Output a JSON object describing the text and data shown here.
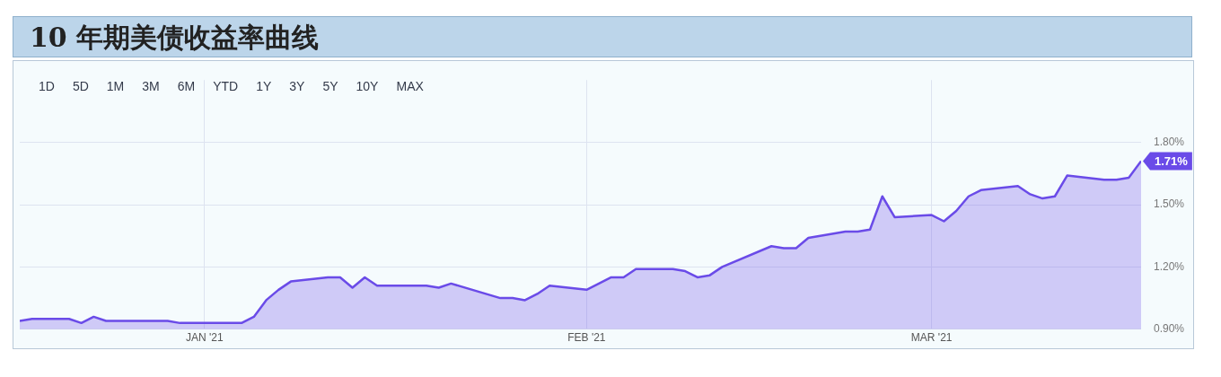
{
  "chart_data": {
    "type": "area",
    "title": "10 年期美债收益率曲线",
    "annotations": [
      "1D",
      "5D",
      "1M",
      "3M",
      "6M",
      "YTD",
      "1Y",
      "3Y",
      "5Y",
      "10Y",
      "MAX"
    ],
    "x": [
      "2020-12-17",
      "2020-12-18",
      "2020-12-21",
      "2020-12-22",
      "2020-12-23",
      "2020-12-24",
      "2020-12-29",
      "2020-12-30",
      "2021-01-04",
      "2021-01-05",
      "2021-01-06",
      "2021-01-07",
      "2021-01-08",
      "2021-01-11",
      "2021-01-12",
      "2021-01-13",
      "2021-01-14",
      "2021-01-15",
      "2021-01-19",
      "2021-01-20",
      "2021-01-21",
      "2021-01-25",
      "2021-01-26",
      "2021-01-27",
      "2021-01-28",
      "2021-01-29",
      "2021-02-01",
      "2021-02-03",
      "2021-02-04",
      "2021-02-05",
      "2021-02-08",
      "2021-02-09",
      "2021-02-10",
      "2021-02-11",
      "2021-02-12",
      "2021-02-16",
      "2021-02-17",
      "2021-02-18",
      "2021-02-19",
      "2021-02-22",
      "2021-02-23",
      "2021-02-24",
      "2021-02-25",
      "2021-02-26",
      "2021-03-01",
      "2021-03-02",
      "2021-03-03",
      "2021-03-04",
      "2021-03-05",
      "2021-03-08",
      "2021-03-09",
      "2021-03-10",
      "2021-03-11",
      "2021-03-12",
      "2021-03-15",
      "2021-03-16",
      "2021-03-17",
      "2021-03-18"
    ],
    "series": [
      {
        "color": "#6a4be8",
        "values": [
          0.94,
          0.95,
          0.95,
          0.93,
          0.96,
          0.94,
          0.94,
          0.93,
          0.93,
          0.96,
          1.04,
          1.09,
          1.13,
          1.15,
          1.15,
          1.1,
          1.15,
          1.11,
          1.11,
          1.1,
          1.12,
          1.05,
          1.05,
          1.04,
          1.07,
          1.11,
          1.09,
          1.15,
          1.15,
          1.19,
          1.19,
          1.18,
          1.15,
          1.16,
          1.2,
          1.3,
          1.29,
          1.29,
          1.34,
          1.37,
          1.37,
          1.38,
          1.54,
          1.44,
          1.45,
          1.42,
          1.47,
          1.54,
          1.57,
          1.59,
          1.55,
          1.53,
          1.54,
          1.64,
          1.62,
          1.62,
          1.63,
          1.71
        ],
        "value_labels": [
          null,
          null,
          null,
          null,
          null,
          null,
          null,
          null,
          null,
          null,
          null,
          null,
          null,
          null,
          null,
          null,
          null,
          null,
          null,
          null,
          null,
          null,
          null,
          null,
          null,
          null,
          null,
          null,
          null,
          null,
          null,
          null,
          null,
          null,
          null,
          null,
          null,
          null,
          null,
          null,
          null,
          null,
          null,
          null,
          null,
          null,
          null,
          null,
          null,
          null,
          null,
          null,
          null,
          null,
          null,
          null,
          null,
          "1.71%"
        ]
      }
    ],
    "xlim": [
      "2020-12-17",
      "2021-03-18"
    ],
    "xticks": [
      {
        "value": "2021-01-01",
        "label": "JAN '21"
      },
      {
        "value": "2021-02-01",
        "label": "FEB '21"
      },
      {
        "value": "2021-03-01",
        "label": "MAR '21"
      }
    ],
    "ylim": [
      0.9,
      2.1
    ],
    "yticks": [
      {
        "value": 0.9,
        "label": "0.90%"
      },
      {
        "value": 1.2,
        "label": "1.20%"
      },
      {
        "value": 1.5,
        "label": "1.50%"
      },
      {
        "value": 1.8,
        "label": "1.80%"
      }
    ],
    "grid": true,
    "legend": false,
    "marker": "none",
    "line_style": "solid"
  }
}
